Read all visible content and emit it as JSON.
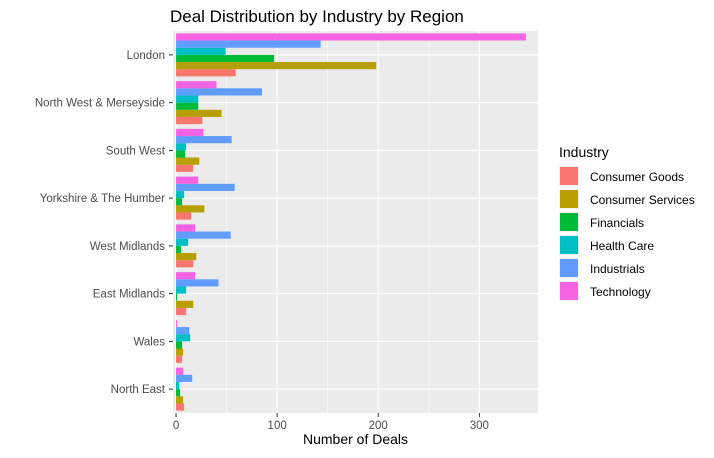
{
  "chart_data": {
    "type": "bar",
    "orientation": "horizontal",
    "title": "Deal Distribution by Industry by Region",
    "xlabel": "Number of Deals",
    "ylabel": "",
    "xlim": [
      -3,
      358
    ],
    "xticks": [
      0,
      100,
      200,
      300
    ],
    "grid": true,
    "legend_title": "Industry",
    "legend_position": "right",
    "categories": [
      "London",
      "North West & Merseyside",
      "South West",
      "Yorkshire & The Humber",
      "West Midlands",
      "East Midlands",
      "Wales",
      "North East"
    ],
    "series": [
      {
        "name": "Consumer Goods",
        "color": "#F8766D",
        "values": [
          59,
          26,
          17,
          15,
          17,
          10,
          6,
          8
        ]
      },
      {
        "name": "Consumer Services",
        "color": "#B79F00",
        "values": [
          198,
          45,
          23,
          28,
          20,
          17,
          7,
          7
        ]
      },
      {
        "name": "Financials",
        "color": "#00BA38",
        "values": [
          97,
          22,
          9,
          6,
          5,
          1,
          6,
          4
        ]
      },
      {
        "name": "Health Care",
        "color": "#00BFC4",
        "values": [
          49,
          22,
          10,
          8,
          12,
          10,
          14,
          3
        ]
      },
      {
        "name": "Industrials",
        "color": "#619CFF",
        "values": [
          143,
          85,
          55,
          58,
          54,
          42,
          13,
          16
        ]
      },
      {
        "name": "Technology",
        "color": "#F564E3",
        "values": [
          346,
          40,
          27,
          22,
          19,
          19,
          1,
          7
        ]
      }
    ]
  }
}
